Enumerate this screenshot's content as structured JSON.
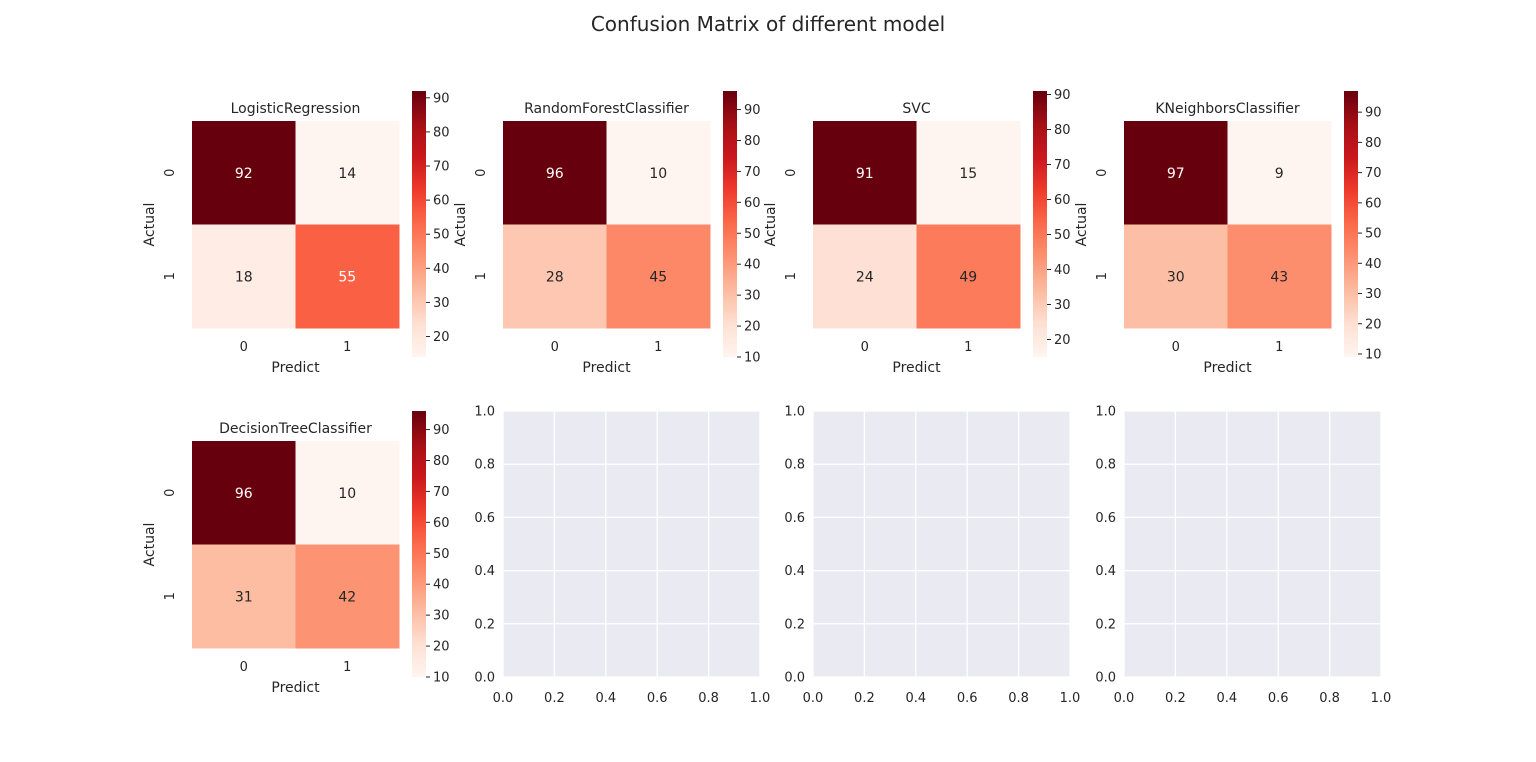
{
  "figure": {
    "title": "Confusion Matrix of different model",
    "colors": {
      "background": "#ffffff",
      "empty_axes_bg": "#eaeaf2",
      "grid": "#ffffff",
      "text": "#262626"
    },
    "colormap": [
      "#fff5f0",
      "#fee0d2",
      "#fcbba1",
      "#fc9272",
      "#fb6a4a",
      "#ef3b2c",
      "#cb181d",
      "#a50f15",
      "#67000d"
    ]
  },
  "chart_data": [
    {
      "type": "heatmap",
      "title": "LogisticRegression",
      "xlabel": "Predict",
      "ylabel": "Actual",
      "x_categories": [
        "0",
        "1"
      ],
      "y_categories": [
        "0",
        "1"
      ],
      "values": [
        [
          92,
          14
        ],
        [
          18,
          55
        ]
      ],
      "vmin": 14,
      "vmax": 92,
      "colorbar_ticks": [
        20,
        30,
        40,
        50,
        60,
        70,
        80,
        90
      ]
    },
    {
      "type": "heatmap",
      "title": "RandomForestClassifier",
      "xlabel": "Predict",
      "ylabel": "Actual",
      "x_categories": [
        "0",
        "1"
      ],
      "y_categories": [
        "0",
        "1"
      ],
      "values": [
        [
          96,
          10
        ],
        [
          28,
          45
        ]
      ],
      "vmin": 10,
      "vmax": 96,
      "colorbar_ticks": [
        10,
        20,
        30,
        40,
        50,
        60,
        70,
        80,
        90
      ]
    },
    {
      "type": "heatmap",
      "title": "SVC",
      "xlabel": "Predict",
      "ylabel": "Actual",
      "x_categories": [
        "0",
        "1"
      ],
      "y_categories": [
        "0",
        "1"
      ],
      "values": [
        [
          91,
          15
        ],
        [
          24,
          49
        ]
      ],
      "vmin": 15,
      "vmax": 91,
      "colorbar_ticks": [
        20,
        30,
        40,
        50,
        60,
        70,
        80,
        90
      ]
    },
    {
      "type": "heatmap",
      "title": "KNeighborsClassifier",
      "xlabel": "Predict",
      "ylabel": "Actual",
      "x_categories": [
        "0",
        "1"
      ],
      "y_categories": [
        "0",
        "1"
      ],
      "values": [
        [
          97,
          9
        ],
        [
          30,
          43
        ]
      ],
      "vmin": 9,
      "vmax": 97,
      "colorbar_ticks": [
        10,
        20,
        30,
        40,
        50,
        60,
        70,
        80,
        90
      ]
    },
    {
      "type": "heatmap",
      "title": "DecisionTreeClassifier",
      "xlabel": "Predict",
      "ylabel": "Actual",
      "x_categories": [
        "0",
        "1"
      ],
      "y_categories": [
        "0",
        "1"
      ],
      "values": [
        [
          96,
          10
        ],
        [
          31,
          42
        ]
      ],
      "vmin": 10,
      "vmax": 96,
      "colorbar_ticks": [
        10,
        20,
        30,
        40,
        50,
        60,
        70,
        80,
        90
      ]
    },
    {
      "type": "scatter",
      "title": "",
      "xlim": [
        0.0,
        1.0
      ],
      "ylim": [
        0.0,
        1.0
      ],
      "xticks": [
        "0.0",
        "0.2",
        "0.4",
        "0.6",
        "0.8",
        "1.0"
      ],
      "yticks": [
        "0.0",
        "0.2",
        "0.4",
        "0.6",
        "0.8",
        "1.0"
      ],
      "grid": true,
      "series": []
    },
    {
      "type": "scatter",
      "title": "",
      "xlim": [
        0.0,
        1.0
      ],
      "ylim": [
        0.0,
        1.0
      ],
      "xticks": [
        "0.0",
        "0.2",
        "0.4",
        "0.6",
        "0.8",
        "1.0"
      ],
      "yticks": [
        "0.0",
        "0.2",
        "0.4",
        "0.6",
        "0.8",
        "1.0"
      ],
      "grid": true,
      "series": []
    },
    {
      "type": "scatter",
      "title": "",
      "xlim": [
        0.0,
        1.0
      ],
      "ylim": [
        0.0,
        1.0
      ],
      "xticks": [
        "0.0",
        "0.2",
        "0.4",
        "0.6",
        "0.8",
        "1.0"
      ],
      "yticks": [
        "0.0",
        "0.2",
        "0.4",
        "0.6",
        "0.8",
        "1.0"
      ],
      "grid": true,
      "series": []
    }
  ]
}
